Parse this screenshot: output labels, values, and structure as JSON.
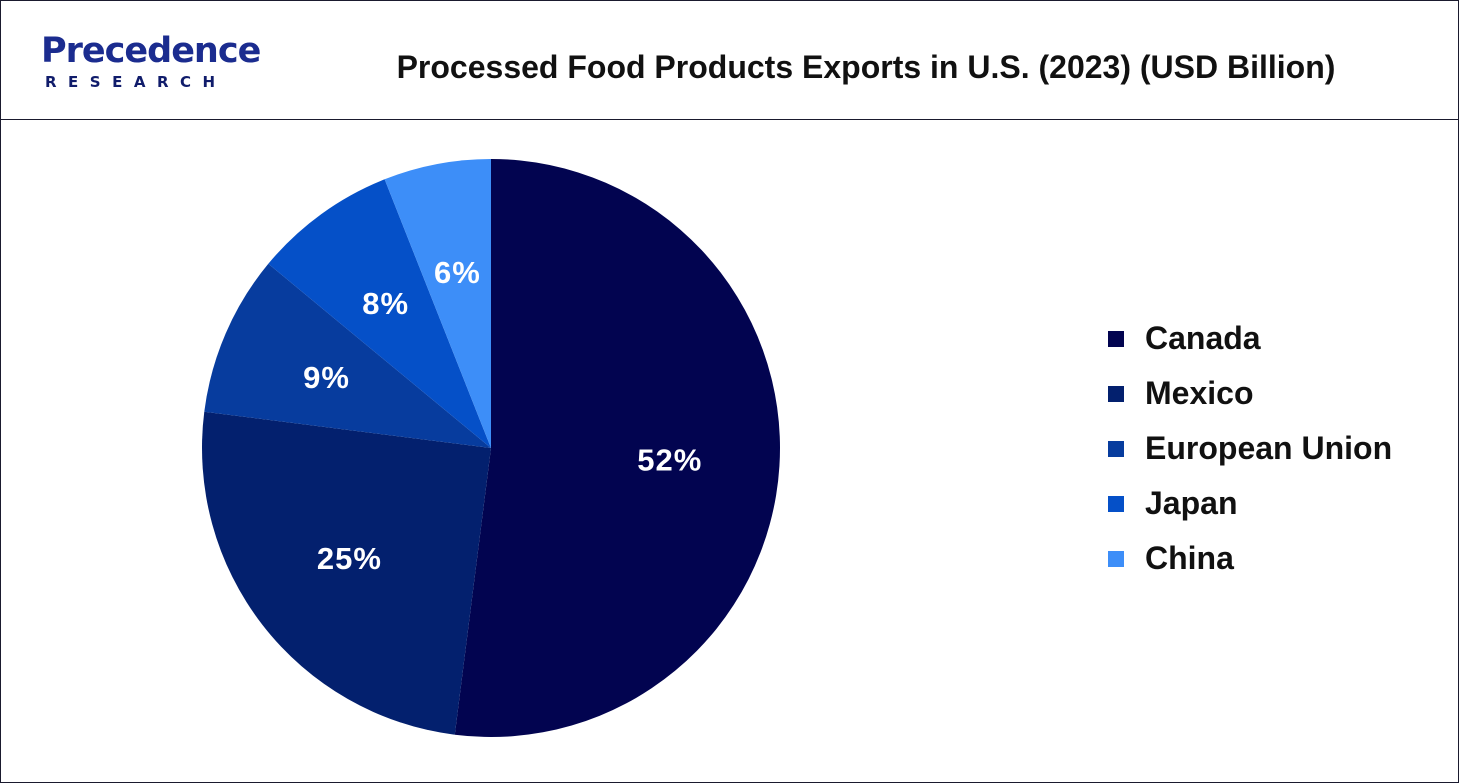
{
  "header": {
    "logo_word": "Precedence",
    "logo_sub": "RESEARCH",
    "title": "Processed Food Products Exports in U.S. (2023) (USD Billion)"
  },
  "chart_data": {
    "type": "pie",
    "title": "Processed Food Products Exports in U.S. (2023) (USD Billion)",
    "unit": "%",
    "legend_position": "right",
    "slices": [
      {
        "label": "Canada",
        "value": 52,
        "display": "52%",
        "color": "#020450"
      },
      {
        "label": "Mexico",
        "value": 25,
        "display": "25%",
        "color": "#03206e"
      },
      {
        "label": "European Union",
        "value": 9,
        "display": "9%",
        "color": "#073c9e"
      },
      {
        "label": "Japan",
        "value": 8,
        "display": "8%",
        "color": "#0550c8"
      },
      {
        "label": "China",
        "value": 6,
        "display": "6%",
        "color": "#3d8ef8"
      }
    ]
  }
}
